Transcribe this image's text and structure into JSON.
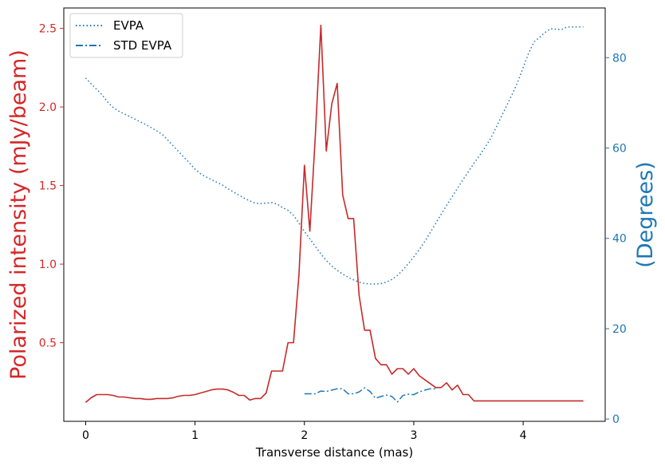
{
  "chart_data": {
    "type": "line",
    "xlabel": "Transverse distance (mas)",
    "ylabel_left": "Polarized intensity (mJy/beam)",
    "ylabel_right": "(Degrees)",
    "xlim": [
      -0.2,
      4.75
    ],
    "ylim_left": [
      0.0,
      2.63
    ],
    "ylim_right": [
      -0.5,
      91.0
    ],
    "x_ticks": [
      0,
      1,
      2,
      3,
      4
    ],
    "x_tick_labels": [
      "0",
      "1",
      "2",
      "3",
      "4"
    ],
    "y_left_ticks": [
      0.5,
      1.0,
      1.5,
      2.0,
      2.5
    ],
    "y_left_tick_labels": [
      "0.5",
      "1.0",
      "1.5",
      "2.0",
      "2.5"
    ],
    "y_right_ticks": [
      0,
      20,
      40,
      60,
      80
    ],
    "y_right_tick_labels": [
      "0",
      "20",
      "40",
      "60",
      "80"
    ],
    "grid": false,
    "legend_position": "top-left",
    "colors": {
      "left_axis": "#d62728",
      "right_axis": "#1f77b4",
      "pi_line": "#c62a2a",
      "evpa_line": "#1f77b4"
    },
    "series": [
      {
        "name": "EVPA",
        "axis": "right",
        "style": "dotted",
        "color": "#1f77b4",
        "x": [
          0.0,
          0.05,
          0.1,
          0.15,
          0.2,
          0.25,
          0.3,
          0.35,
          0.4,
          0.45,
          0.5,
          0.55,
          0.6,
          0.65,
          0.7,
          0.75,
          0.8,
          0.85,
          0.9,
          0.95,
          1.0,
          1.05,
          1.1,
          1.15,
          1.2,
          1.25,
          1.3,
          1.35,
          1.4,
          1.45,
          1.5,
          1.55,
          1.6,
          1.65,
          1.7,
          1.75,
          1.8,
          1.85,
          1.9,
          1.95,
          2.0,
          2.05,
          2.1,
          2.15,
          2.2,
          2.25,
          2.3,
          2.35,
          2.4,
          2.45,
          2.5,
          2.55,
          2.6,
          2.65,
          2.7,
          2.75,
          2.8,
          2.85,
          2.9,
          2.95,
          3.0,
          3.05,
          3.1,
          3.15,
          3.2,
          3.25,
          3.3,
          3.35,
          3.4,
          3.45,
          3.5,
          3.55,
          3.6,
          3.65,
          3.7,
          3.75,
          3.8,
          3.85,
          3.9,
          3.95,
          4.0,
          4.05,
          4.1,
          4.15,
          4.2,
          4.25,
          4.3,
          4.35,
          4.4,
          4.45,
          4.5,
          4.55
        ],
        "y": [
          75.5,
          74.2,
          73.0,
          71.8,
          70.2,
          69.0,
          68.2,
          67.6,
          67.0,
          66.4,
          65.8,
          65.2,
          64.5,
          63.8,
          63.0,
          61.8,
          60.5,
          59.2,
          57.9,
          56.7,
          55.3,
          54.3,
          53.6,
          53.0,
          52.4,
          51.8,
          51.0,
          50.3,
          49.6,
          48.9,
          48.3,
          47.8,
          47.7,
          47.8,
          47.9,
          47.6,
          46.8,
          46.2,
          45.1,
          43.4,
          41.5,
          39.9,
          38.2,
          36.6,
          35.1,
          33.9,
          32.9,
          32.1,
          31.4,
          30.8,
          30.3,
          30.0,
          29.9,
          29.9,
          30.0,
          30.3,
          30.9,
          31.8,
          33.0,
          34.4,
          35.9,
          37.5,
          39.3,
          41.3,
          43.3,
          45.3,
          47.3,
          49.2,
          51.1,
          53.0,
          54.8,
          56.6,
          58.3,
          60.1,
          62.0,
          64.4,
          66.9,
          69.4,
          71.9,
          74.6,
          77.8,
          81.0,
          83.5,
          84.5,
          85.6,
          86.4,
          86.3,
          86.2,
          86.8,
          86.8,
          86.8,
          86.8
        ]
      },
      {
        "name": "STD EVPA",
        "axis": "right",
        "style": "dashdot",
        "color": "#1f77b4",
        "x": [
          2.0,
          2.05,
          2.1,
          2.15,
          2.2,
          2.25,
          2.3,
          2.35,
          2.4,
          2.45,
          2.5,
          2.55,
          2.6,
          2.65,
          2.7,
          2.75,
          2.8,
          2.85,
          2.9,
          2.95,
          3.0,
          3.05,
          3.1,
          3.15,
          3.2
        ],
        "y": [
          5.6,
          5.6,
          5.6,
          6.2,
          6.1,
          6.4,
          6.7,
          6.7,
          5.6,
          5.6,
          6.0,
          6.9,
          6.1,
          4.6,
          5.0,
          5.3,
          5.0,
          3.8,
          5.2,
          5.5,
          5.4,
          6.0,
          6.4,
          6.7,
          6.7
        ]
      },
      {
        "name": "",
        "axis": "left",
        "style": "solid",
        "color": "#c62a2a",
        "x": [
          0.0,
          0.05,
          0.1,
          0.15,
          0.2,
          0.25,
          0.3,
          0.35,
          0.4,
          0.45,
          0.5,
          0.55,
          0.6,
          0.65,
          0.7,
          0.75,
          0.8,
          0.85,
          0.9,
          0.95,
          1.0,
          1.05,
          1.1,
          1.15,
          1.2,
          1.25,
          1.3,
          1.35,
          1.4,
          1.45,
          1.5,
          1.55,
          1.6,
          1.65,
          1.7,
          1.75,
          1.8,
          1.85,
          1.9,
          1.95,
          2.0,
          2.05,
          2.1,
          2.15,
          2.2,
          2.25,
          2.3,
          2.35,
          2.4,
          2.45,
          2.5,
          2.55,
          2.6,
          2.65,
          2.7,
          2.75,
          2.8,
          2.85,
          2.9,
          2.95,
          3.0,
          3.05,
          3.1,
          3.15,
          3.2,
          3.25,
          3.3,
          3.35,
          3.4,
          3.45,
          3.5,
          3.55,
          3.6,
          3.65,
          3.7,
          3.75,
          3.8,
          3.85,
          3.9,
          3.95,
          4.0,
          4.05,
          4.1,
          4.15,
          4.2,
          4.25,
          4.3,
          4.35,
          4.4,
          4.45,
          4.5,
          4.55
        ],
        "y": [
          0.12,
          0.15,
          0.17,
          0.17,
          0.17,
          0.165,
          0.155,
          0.155,
          0.15,
          0.145,
          0.145,
          0.14,
          0.14,
          0.145,
          0.145,
          0.145,
          0.15,
          0.16,
          0.165,
          0.165,
          0.17,
          0.18,
          0.19,
          0.2,
          0.205,
          0.205,
          0.2,
          0.185,
          0.165,
          0.165,
          0.135,
          0.145,
          0.145,
          0.18,
          0.32,
          0.32,
          0.32,
          0.5,
          0.5,
          0.93,
          1.63,
          1.21,
          1.82,
          2.52,
          1.72,
          2.02,
          2.15,
          1.44,
          1.29,
          1.29,
          0.8,
          0.58,
          0.58,
          0.4,
          0.36,
          0.36,
          0.3,
          0.335,
          0.335,
          0.3,
          0.335,
          0.29,
          0.265,
          0.24,
          0.215,
          0.215,
          0.245,
          0.2,
          0.23,
          0.17,
          0.17,
          0.13,
          0.13,
          0.13,
          0.13,
          0.13,
          0.13,
          0.13,
          0.13,
          0.13,
          0.13,
          0.13,
          0.13,
          0.13,
          0.13,
          0.13,
          0.13,
          0.13,
          0.13,
          0.13,
          0.13,
          0.13
        ]
      }
    ]
  }
}
